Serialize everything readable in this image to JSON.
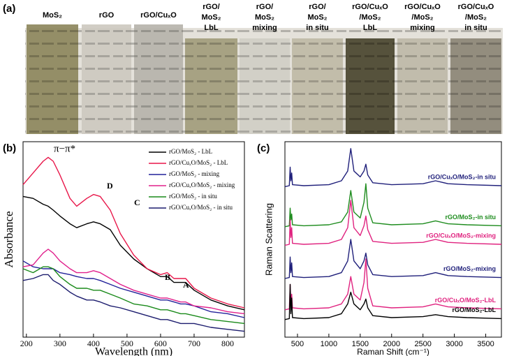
{
  "panel_labels": [
    "(a)",
    "(b)",
    "(c)"
  ],
  "samples": [
    {
      "label": [
        "MoS₂"
      ],
      "color": "#8d875d"
    },
    {
      "label": [
        "rGO"
      ],
      "color": "#cdc9c0"
    },
    {
      "label": [
        "rGO/CuₓO"
      ],
      "color": "#b6b3ab"
    },
    {
      "label": [
        "rGO/",
        "MoS₂",
        "LbL"
      ],
      "color": "#a29c7c"
    },
    {
      "label": [
        "rGO/",
        "MoS₂",
        "mixing"
      ],
      "color": "#d0cec5"
    },
    {
      "label": [
        "rGO/",
        "MoS₂",
        "in situ"
      ],
      "color": "#bfbaa6"
    },
    {
      "label": [
        "rGO/CuₓO",
        "/MoS₂",
        "LbL"
      ],
      "color": "#4a452f"
    },
    {
      "label": [
        "rGO/CuₓO",
        "/MoS₂",
        "mixing"
      ],
      "color": "#beb9a8"
    },
    {
      "label": [
        "rGO/CuₓO",
        "/MoS₂",
        "in situ"
      ],
      "color": "#8c8676"
    }
  ],
  "chart_data": [
    {
      "type": "line",
      "x_label": "Wavelength (nm)",
      "y_label": "Absorbance",
      "legend": "upper right",
      "annotations": [
        "π−π*",
        "D",
        "C",
        "B",
        "A"
      ],
      "xlim": [
        190,
        850
      ],
      "ylim": [
        0,
        1
      ],
      "xticks": [
        200,
        300,
        400,
        500,
        600,
        700,
        800
      ],
      "x": [
        190,
        220,
        250,
        265,
        280,
        300,
        330,
        350,
        380,
        400,
        420,
        450,
        480,
        520,
        560,
        600,
        620,
        640,
        660,
        675,
        700,
        750,
        800,
        850
      ],
      "series": [
        {
          "name": "rGO/MoS₂ - LbL",
          "color": "#000000",
          "values": [
            0.72,
            0.71,
            0.68,
            0.67,
            0.65,
            0.62,
            0.58,
            0.56,
            0.58,
            0.59,
            0.58,
            0.55,
            0.47,
            0.4,
            0.35,
            0.31,
            0.31,
            0.28,
            0.28,
            0.28,
            0.24,
            0.19,
            0.16,
            0.14
          ]
        },
        {
          "name": "rGO/CuₓO/MoS₂ - LbL",
          "color": "#e8174a",
          "values": [
            0.78,
            0.84,
            0.9,
            0.92,
            0.9,
            0.83,
            0.71,
            0.67,
            0.71,
            0.73,
            0.72,
            0.65,
            0.53,
            0.42,
            0.35,
            0.32,
            0.33,
            0.3,
            0.3,
            0.3,
            0.25,
            0.2,
            0.17,
            0.15
          ]
        },
        {
          "name": "rGO/MoS₂ - mixing",
          "color": "#22229a",
          "values": [
            0.39,
            0.36,
            0.35,
            0.35,
            0.35,
            0.33,
            0.32,
            0.31,
            0.3,
            0.3,
            0.29,
            0.27,
            0.25,
            0.23,
            0.21,
            0.19,
            0.19,
            0.18,
            0.17,
            0.17,
            0.16,
            0.13,
            0.12,
            0.1
          ]
        },
        {
          "name": "rGO/CuₓO/MoS₂ - mixing",
          "color": "#e0208c",
          "values": [
            0.36,
            0.37,
            0.43,
            0.45,
            0.43,
            0.39,
            0.35,
            0.33,
            0.33,
            0.34,
            0.33,
            0.3,
            0.27,
            0.24,
            0.22,
            0.2,
            0.2,
            0.19,
            0.18,
            0.18,
            0.16,
            0.15,
            0.13,
            0.12
          ]
        },
        {
          "name": "rGO/MoS₂ - in situ",
          "color": "#1a8a1a",
          "values": [
            0.35,
            0.33,
            0.36,
            0.36,
            0.35,
            0.31,
            0.27,
            0.25,
            0.25,
            0.24,
            0.24,
            0.22,
            0.2,
            0.17,
            0.16,
            0.14,
            0.14,
            0.13,
            0.12,
            0.12,
            0.11,
            0.09,
            0.08,
            0.07
          ]
        },
        {
          "name": "rGO/CuₓO/MoS₂ - in situ",
          "color": "#1c1c6e",
          "values": [
            0.29,
            0.3,
            0.32,
            0.32,
            0.29,
            0.27,
            0.23,
            0.21,
            0.19,
            0.19,
            0.18,
            0.16,
            0.15,
            0.13,
            0.11,
            0.09,
            0.09,
            0.08,
            0.07,
            0.07,
            0.07,
            0.05,
            0.04,
            0.03
          ]
        }
      ]
    },
    {
      "type": "line",
      "x_label": "Raman Shift (cm⁻¹)",
      "y_label": "Raman Scattering",
      "legend": "inline",
      "xlim": [
        300,
        3750
      ],
      "ylim": [
        0,
        1
      ],
      "xticks": [
        500,
        1000,
        1500,
        2000,
        2500,
        3000,
        3500
      ],
      "x": [
        300,
        370,
        383,
        395,
        408,
        420,
        600,
        1000,
        1200,
        1300,
        1350,
        1400,
        1500,
        1560,
        1590,
        1620,
        1700,
        2000,
        2500,
        2700,
        2900,
        3200,
        3750
      ],
      "series": [
        {
          "name": "rGO/CuₓO/MoS₂-in situ",
          "color": "#1f1f7a",
          "values": [
            0.77,
            0.775,
            0.87,
            0.8,
            0.84,
            0.78,
            0.775,
            0.78,
            0.8,
            0.85,
            0.965,
            0.85,
            0.82,
            0.85,
            0.885,
            0.83,
            0.79,
            0.78,
            0.785,
            0.8,
            0.785,
            0.78,
            0.775
          ]
        },
        {
          "name": "rGO/MoS₂-in situ",
          "color": "#1e8c1e",
          "values": [
            0.565,
            0.57,
            0.66,
            0.6,
            0.63,
            0.575,
            0.57,
            0.575,
            0.59,
            0.64,
            0.75,
            0.64,
            0.61,
            0.69,
            0.785,
            0.66,
            0.585,
            0.575,
            0.58,
            0.595,
            0.58,
            0.575,
            0.57
          ]
        },
        {
          "name": "rGO/CuₓO/MoS₂-mixing",
          "color": "#e0227f",
          "values": [
            0.47,
            0.475,
            0.6,
            0.51,
            0.56,
            0.48,
            0.475,
            0.48,
            0.5,
            0.56,
            0.7,
            0.56,
            0.52,
            0.57,
            0.62,
            0.55,
            0.49,
            0.48,
            0.485,
            0.5,
            0.485,
            0.48,
            0.475
          ]
        },
        {
          "name": "rGO/MoS₂-mixing",
          "color": "#1f1f7a",
          "values": [
            0.3,
            0.305,
            0.41,
            0.33,
            0.38,
            0.31,
            0.305,
            0.31,
            0.33,
            0.39,
            0.5,
            0.39,
            0.35,
            0.39,
            0.43,
            0.37,
            0.32,
            0.31,
            0.315,
            0.33,
            0.315,
            0.31,
            0.305
          ]
        },
        {
          "name": "rGO/CuₓO/MoS₂-LbL",
          "color": "#e0227f",
          "values": [
            0.14,
            0.145,
            0.27,
            0.17,
            0.22,
            0.15,
            0.145,
            0.15,
            0.17,
            0.22,
            0.31,
            0.22,
            0.19,
            0.28,
            0.4,
            0.25,
            0.16,
            0.15,
            0.155,
            0.17,
            0.155,
            0.15,
            0.145
          ]
        },
        {
          "name": "rGO/MoS₂-LbL",
          "color": "#000000",
          "values": [
            0.09,
            0.095,
            0.27,
            0.12,
            0.2,
            0.1,
            0.095,
            0.1,
            0.12,
            0.17,
            0.23,
            0.17,
            0.14,
            0.17,
            0.195,
            0.15,
            0.11,
            0.1,
            0.105,
            0.115,
            0.105,
            0.1,
            0.095
          ]
        }
      ]
    }
  ]
}
